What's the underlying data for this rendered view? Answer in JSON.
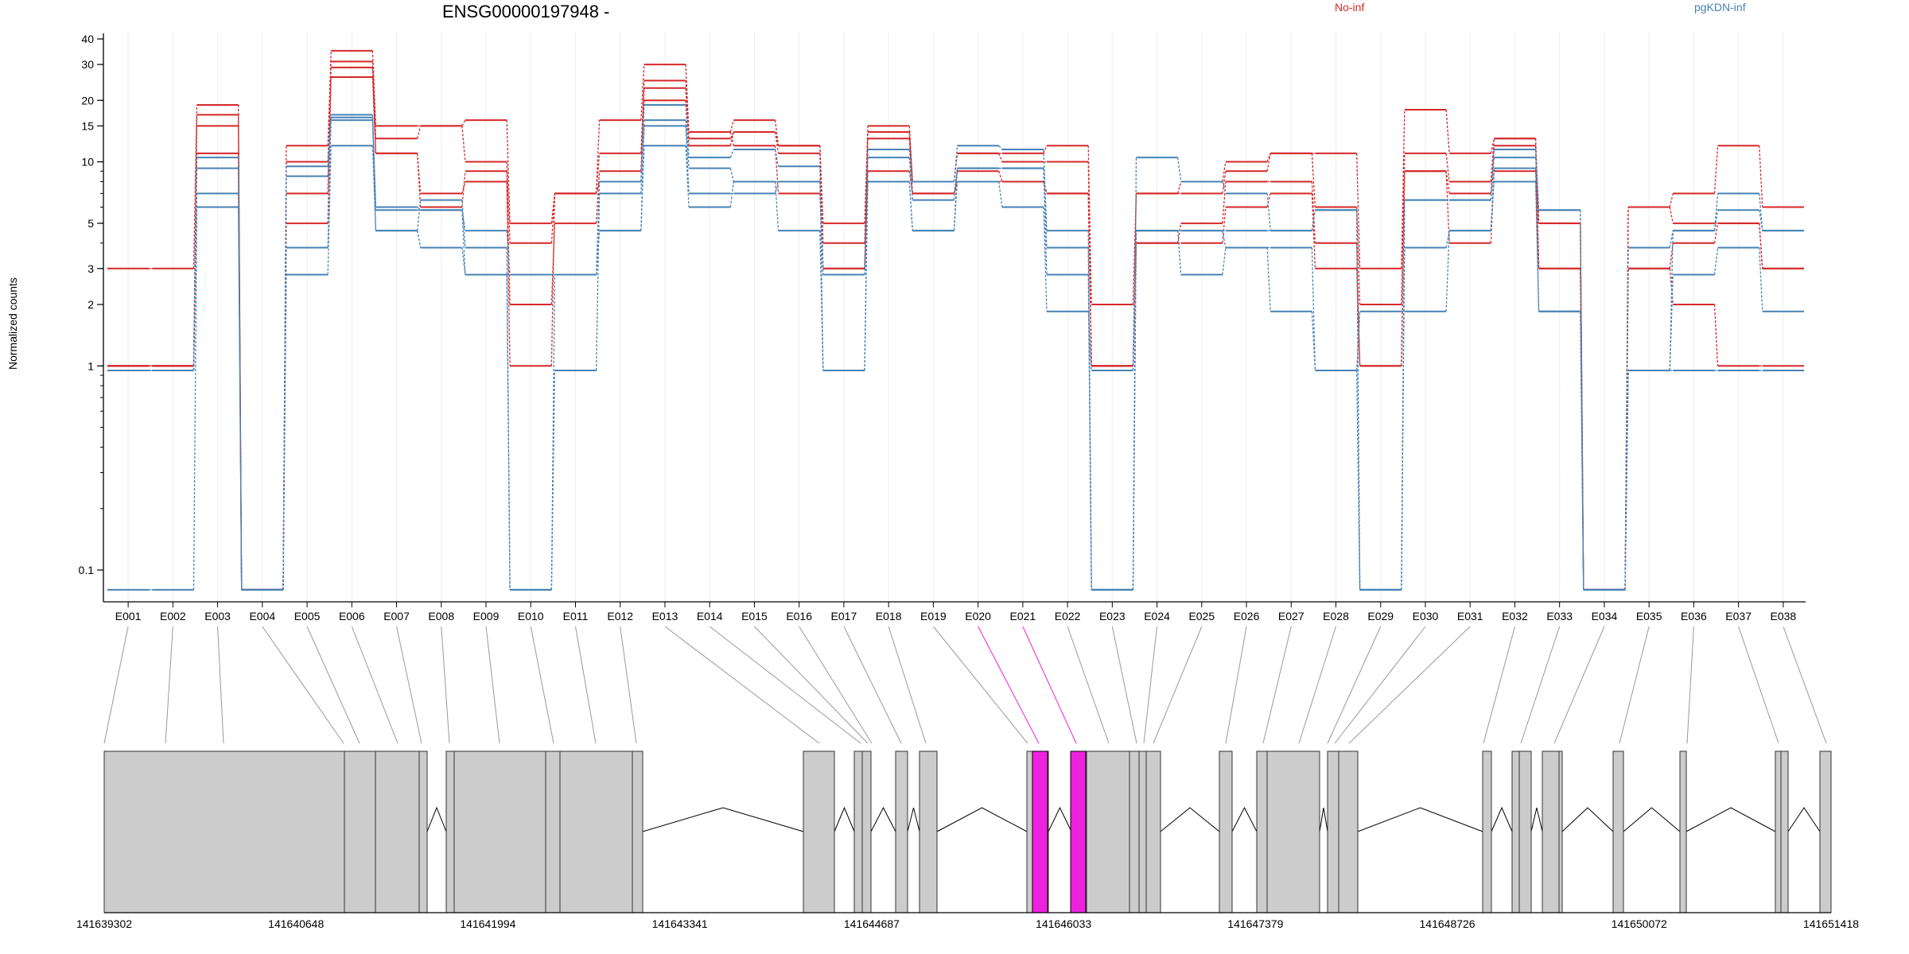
{
  "chart_data": {
    "type": "line",
    "title": "ENSG00000197948 -",
    "ylabel": "Normalized counts",
    "yscale": "log",
    "ylim": [
      0.08,
      42
    ],
    "yticks": [
      0.1,
      1,
      2,
      3,
      5,
      10,
      15,
      20,
      30,
      40
    ],
    "grid": "vertical minor lines",
    "legend": "top-right",
    "categories": [
      "E001",
      "E002",
      "E003",
      "E004",
      "E005",
      "E006",
      "E007",
      "E008",
      "E009",
      "E010",
      "E011",
      "E012",
      "E013",
      "E014",
      "E015",
      "E016",
      "E017",
      "E018",
      "E019",
      "E020",
      "E021",
      "E022",
      "E023",
      "E024",
      "E025",
      "E026",
      "E027",
      "E028",
      "E029",
      "E030",
      "E031",
      "E032",
      "E033",
      "E034",
      "E035",
      "E036",
      "E037",
      "E038"
    ],
    "series": [
      {
        "name": "No-inf",
        "color": "#d62728",
        "values": [
          3,
          3,
          19,
          0.08,
          12,
          35,
          15,
          15,
          16,
          5,
          7,
          16,
          30,
          14,
          16,
          12,
          5,
          15,
          8,
          11,
          11,
          12,
          2,
          7,
          8,
          10,
          11,
          11,
          3,
          18,
          11,
          13,
          5,
          0.08,
          6,
          7,
          12,
          6
        ]
      },
      {
        "name": "No-inf",
        "color": "#d62728",
        "values": [
          1,
          1,
          17,
          0.08,
          10,
          31,
          13,
          15,
          10,
          4,
          7,
          11,
          25,
          13,
          14,
          12,
          4,
          14,
          8,
          11,
          10,
          10,
          1,
          7,
          7,
          9,
          11,
          6,
          2,
          11,
          8,
          13,
          3,
          0.08,
          6,
          5,
          5,
          3
        ]
      },
      {
        "name": "No-inf",
        "color": "#d62728",
        "values": [
          1,
          1,
          15,
          0.08,
          7,
          29,
          11,
          6,
          9,
          2,
          5,
          9,
          23,
          12,
          14,
          11,
          3,
          13,
          7,
          9,
          8,
          7,
          1,
          4,
          5,
          8,
          8,
          4,
          1,
          9,
          7,
          12,
          3,
          0.08,
          3,
          4,
          5,
          3
        ]
      },
      {
        "name": "No-inf",
        "color": "#d62728",
        "values": [
          1,
          1,
          11,
          0.08,
          5,
          26,
          11,
          7,
          8,
          1,
          7,
          8,
          20,
          14,
          12,
          7,
          3,
          9,
          7,
          8,
          8,
          7,
          1,
          4,
          4,
          6,
          7,
          3,
          1,
          9,
          4,
          9,
          5,
          0.08,
          3,
          2,
          1,
          1
        ]
      },
      {
        "name": "pgKDN-inf",
        "color": "#4682b4",
        "values": [
          0.95,
          0.95,
          10.5,
          0.08,
          9.5,
          17,
          6,
          5.8,
          4.6,
          2.8,
          2.8,
          8,
          19,
          10.5,
          11.5,
          9.5,
          0.95,
          11.5,
          8,
          12,
          11.5,
          4.6,
          0.08,
          10.5,
          8,
          7,
          4.6,
          5.8,
          0.08,
          6.5,
          6.5,
          11.5,
          5.8,
          0.08,
          3.8,
          4.6,
          7,
          4.6
        ]
      },
      {
        "name": "pgKDN-inf",
        "color": "#4682b4",
        "values": [
          0.95,
          0.95,
          9.3,
          0.08,
          8.5,
          16.5,
          5.8,
          5.8,
          2.8,
          0.08,
          0.95,
          7,
          16,
          9.3,
          8,
          8,
          2.8,
          10.5,
          6.5,
          9.3,
          9.3,
          3.8,
          0.08,
          4.6,
          4.6,
          4.6,
          4.6,
          5.8,
          0.08,
          6.5,
          6.5,
          10.5,
          5.8,
          0.08,
          0.95,
          4.6,
          5.8,
          4.6
        ]
      },
      {
        "name": "pgKDN-inf",
        "color": "#4682b4",
        "values": [
          0.95,
          0.95,
          7,
          0.08,
          3.8,
          16,
          4.6,
          6.5,
          3.8,
          0.08,
          2.8,
          4.6,
          15,
          7,
          7,
          8,
          2.8,
          8,
          4.6,
          9.3,
          9.3,
          2.8,
          0.08,
          4.6,
          4.6,
          3.8,
          3.8,
          0.95,
          0.08,
          3.8,
          4.6,
          9.3,
          1.85,
          0.08,
          0.95,
          2.8,
          3.8,
          1.85
        ]
      },
      {
        "name": "pgKDN-inf",
        "color": "#4682b4",
        "values": [
          0.08,
          0.08,
          6,
          0.08,
          2.8,
          12,
          4.6,
          3.8,
          2.8,
          2.8,
          2.8,
          4.6,
          12,
          6,
          8,
          4.6,
          0.95,
          8,
          4.6,
          8,
          6,
          1.85,
          0.95,
          4.6,
          2.8,
          3.8,
          1.85,
          0.95,
          1.85,
          1.85,
          4.6,
          8,
          1.85,
          0.08,
          0.95,
          0.95,
          0.95,
          0.95
        ]
      }
    ],
    "gene_model": {
      "coordinates": [
        "141639302",
        "141640648",
        "141641994",
        "141643341",
        "141644687",
        "141646033",
        "141647379",
        "141648726",
        "141650072",
        "141651418"
      ],
      "highlighted_exons": [
        "E020",
        "E021"
      ],
      "highlight_color": "#ee22dd"
    }
  }
}
